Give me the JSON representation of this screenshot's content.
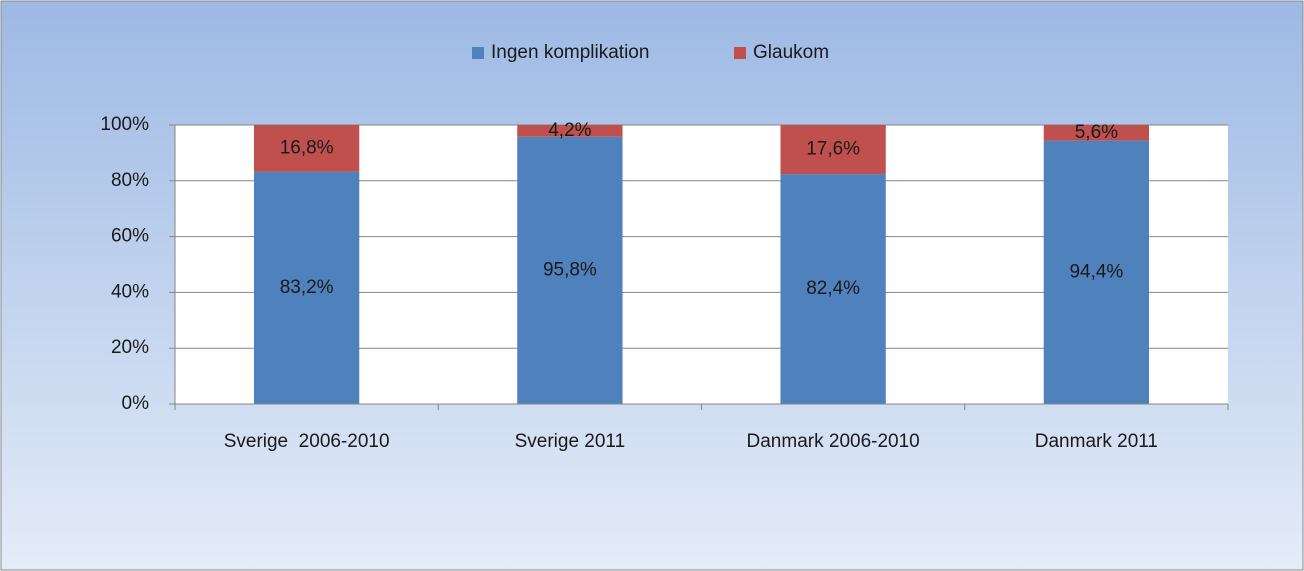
{
  "chart_data": {
    "type": "stacked_bar",
    "categories": [
      "Sverige  2006-2010",
      "Sverige 2011",
      "Danmark 2006-2010",
      "Danmark 2011"
    ],
    "series": [
      {
        "name": "Ingen komplikation",
        "color": "#4f81bd",
        "values": [
          83.2,
          95.8,
          82.4,
          94.4
        ],
        "value_labels": [
          "83,2%",
          "95,8%",
          "82,4%",
          "94,4%"
        ]
      },
      {
        "name": "Glaukom",
        "color": "#c0504d",
        "values": [
          16.8,
          4.2,
          17.6,
          5.6
        ],
        "value_labels": [
          "16,8%",
          "4,2%",
          "17,6%",
          "5,6%"
        ]
      }
    ],
    "ylim": [
      0,
      100
    ],
    "yticks": [
      {
        "value": 0,
        "label": "0%"
      },
      {
        "value": 20,
        "label": "20%"
      },
      {
        "value": 40,
        "label": "40%"
      },
      {
        "value": 60,
        "label": "60%"
      },
      {
        "value": 80,
        "label": "80%"
      },
      {
        "value": 100,
        "label": "100%"
      }
    ],
    "grid": true,
    "legend": "top"
  }
}
